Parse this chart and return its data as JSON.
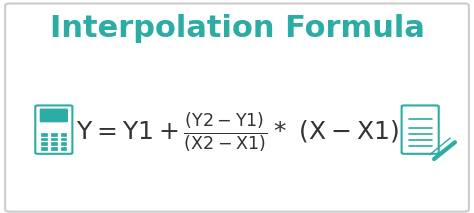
{
  "title": "Interpolation Formula",
  "title_color": "#2BACA4",
  "title_fontsize": 22,
  "formula_color": "#333333",
  "formula_fontsize": 18,
  "background_color": "#ffffff",
  "border_color": "#cccccc",
  "icon_color": "#2BACA4",
  "fig_width": 4.74,
  "fig_height": 2.13,
  "dpi": 100
}
